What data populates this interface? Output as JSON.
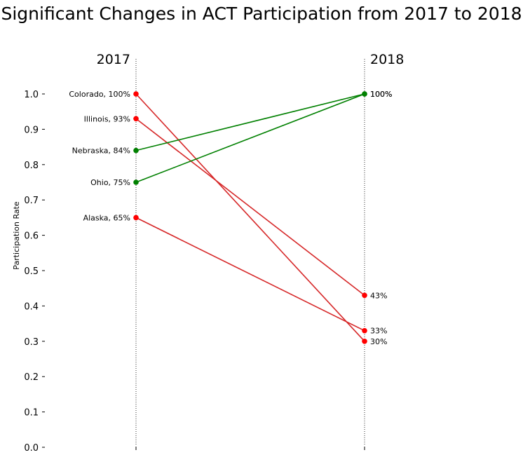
{
  "chart_data": {
    "type": "line",
    "title": "Significant Changes in ACT Participation from 2017 to 2018",
    "xlabel": "",
    "ylabel": "Participation Rate",
    "x": [
      "2017",
      "2018"
    ],
    "ylim": [
      0.0,
      1.0
    ],
    "yticks": [
      "0.0",
      "0.1",
      "0.2",
      "0.3",
      "0.4",
      "0.5",
      "0.6",
      "0.7",
      "0.8",
      "0.9",
      "1.0"
    ],
    "grid": false,
    "legend": "none",
    "colors": {
      "increase": "#008000",
      "decrease": "#ff0000",
      "decrease_line": "#d62728"
    },
    "series": [
      {
        "name": "Colorado",
        "values": [
          1.0,
          0.3
        ],
        "start_label": "Colorado, 100%",
        "end_label": "30%",
        "trend": "decrease"
      },
      {
        "name": "Illinois",
        "values": [
          0.93,
          0.43
        ],
        "start_label": "Illinois, 93%",
        "end_label": "43%",
        "trend": "decrease"
      },
      {
        "name": "Nebraska",
        "values": [
          0.84,
          1.0
        ],
        "start_label": "Nebraska, 84%",
        "end_label": "100%",
        "trend": "increase"
      },
      {
        "name": "Ohio",
        "values": [
          0.75,
          1.0
        ],
        "start_label": "Ohio, 75%",
        "end_label": "100%",
        "trend": "increase"
      },
      {
        "name": "Alaska",
        "values": [
          0.65,
          0.33
        ],
        "start_label": "Alaska, 65%",
        "end_label": "33%",
        "trend": "decrease"
      }
    ]
  }
}
